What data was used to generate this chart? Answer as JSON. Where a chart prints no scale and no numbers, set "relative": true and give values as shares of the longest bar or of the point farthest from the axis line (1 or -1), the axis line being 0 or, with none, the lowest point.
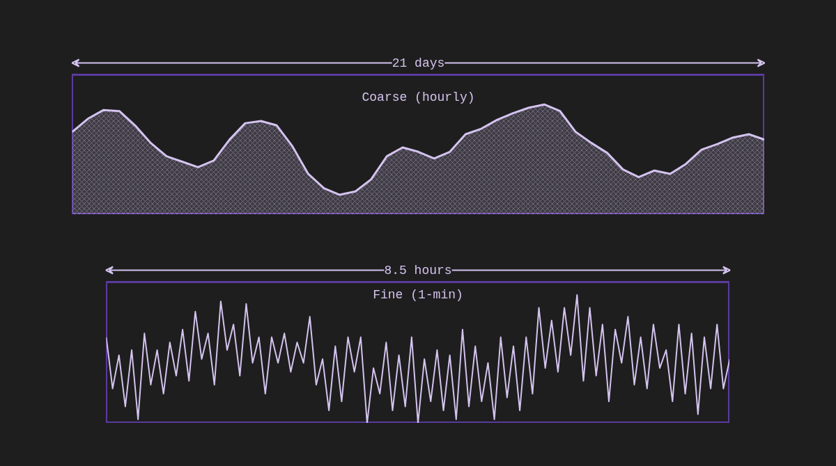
{
  "chart_data": [
    {
      "type": "area",
      "title": "Coarse (hourly)",
      "relative": true,
      "tick_labels": false,
      "annotations": [
        "21 days"
      ],
      "categories": [
        null,
        null,
        null,
        null,
        null,
        null,
        null,
        null,
        null,
        null,
        null,
        null,
        null,
        null,
        null,
        null,
        null,
        null,
        null,
        null,
        null,
        null,
        null,
        null,
        null,
        null,
        null,
        null,
        null,
        null,
        null,
        null,
        null,
        null,
        null,
        null,
        null,
        null,
        null,
        null,
        null,
        null,
        null,
        null,
        null
      ],
      "series": [
        {
          "color": "#d4c3ef",
          "values": [
            0.75,
            0.87,
            0.95,
            0.94,
            0.81,
            0.65,
            0.53,
            0.48,
            0.43,
            0.49,
            0.68,
            0.83,
            0.85,
            0.81,
            0.62,
            0.37,
            0.24,
            0.18,
            0.21,
            0.32,
            0.53,
            0.61,
            0.57,
            0.51,
            0.57,
            0.73,
            0.78,
            0.86,
            0.92,
            0.97,
            1,
            0.94,
            0.75,
            0.65,
            0.56,
            0.41,
            0.34,
            0.4,
            0.37,
            0.46,
            0.59,
            0.64,
            0.7,
            0.73,
            0.68
          ]
        }
      ]
    },
    {
      "type": "line",
      "title": "Fine (1-min)",
      "relative": true,
      "tick_labels": false,
      "annotations": [
        "8.5 hours"
      ],
      "categories": [
        null,
        null,
        null,
        null,
        null,
        null,
        null,
        null,
        null,
        null,
        null,
        null,
        null,
        null,
        null,
        null,
        null,
        null,
        null,
        null,
        null,
        null,
        null,
        null,
        null,
        null,
        null,
        null,
        null,
        null,
        null,
        null,
        null,
        null,
        null,
        null,
        null,
        null,
        null,
        null,
        null,
        null,
        null,
        null,
        null,
        null,
        null,
        null,
        null,
        null,
        null,
        null,
        null,
        null,
        null,
        null,
        null,
        null,
        null,
        null,
        null,
        null,
        null,
        null,
        null,
        null,
        null,
        null,
        null,
        null,
        null,
        null,
        null,
        null,
        null,
        null,
        null,
        null,
        null,
        null,
        null,
        null,
        null,
        null,
        null,
        null,
        null,
        null,
        null,
        null,
        null,
        null,
        null,
        null,
        null,
        null,
        null,
        null,
        null
      ],
      "series": [
        {
          "color": "#d4c3ef",
          "values": [
            0.67,
            0.27,
            0.53,
            0.13,
            0.57,
            0.03,
            0.7,
            0.3,
            0.57,
            0.23,
            0.63,
            0.37,
            0.73,
            0.33,
            0.87,
            0.5,
            0.7,
            0.3,
            0.95,
            0.57,
            0.77,
            0.37,
            0.93,
            0.47,
            0.67,
            0.23,
            0.67,
            0.47,
            0.7,
            0.4,
            0.63,
            0.47,
            0.83,
            0.3,
            0.5,
            0.1,
            0.6,
            0.17,
            0.67,
            0.4,
            0.67,
            0,
            0.43,
            0.23,
            0.63,
            0.1,
            0.53,
            0.13,
            0.67,
            0,
            0.5,
            0.17,
            0.57,
            0.1,
            0.53,
            0.03,
            0.73,
            0.13,
            0.6,
            0.17,
            0.47,
            0.03,
            0.67,
            0.2,
            0.6,
            0.1,
            0.67,
            0.23,
            0.9,
            0.43,
            0.8,
            0.4,
            0.9,
            0.53,
            1,
            0.33,
            0.9,
            0.37,
            0.77,
            0.17,
            0.73,
            0.47,
            0.83,
            0.3,
            0.67,
            0.27,
            0.77,
            0.43,
            0.57,
            0.17,
            0.77,
            0.23,
            0.7,
            0.07,
            0.67,
            0.27,
            0.77,
            0.27,
            0.5
          ]
        }
      ]
    }
  ]
}
